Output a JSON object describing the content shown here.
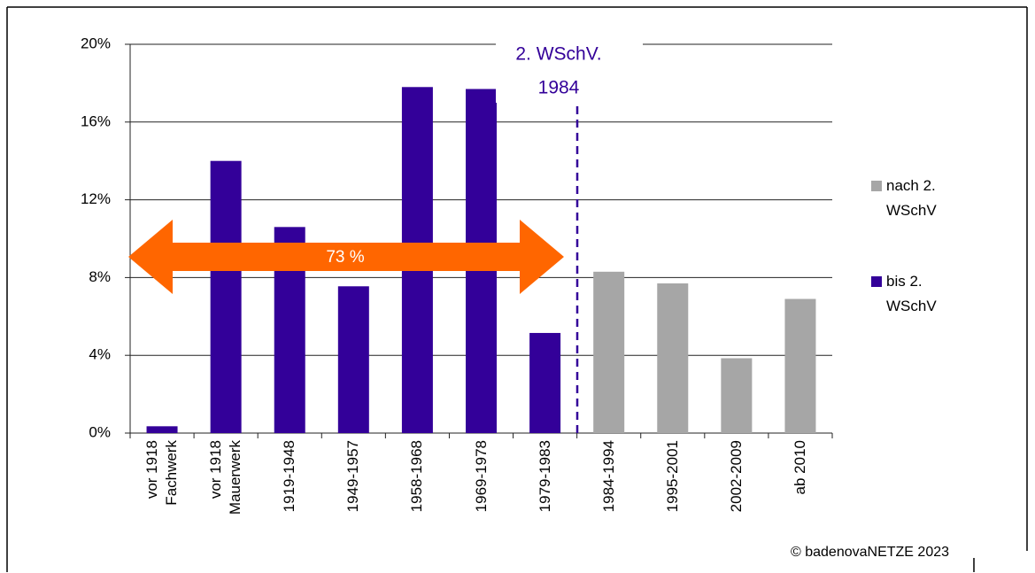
{
  "chart_data": {
    "type": "bar",
    "categories": [
      "vor 1918\nFachwerk",
      "vor 1918\nMauerwerk",
      "1919-1948",
      "1949-1957",
      "1958-1968",
      "1969-1978",
      "1979-1983",
      "1984-1994",
      "1995-2001",
      "2002-2009",
      "ab 2010"
    ],
    "series": [
      {
        "name": "nach 2. WSchV",
        "color": "#a6a6a6",
        "values": [
          null,
          null,
          null,
          null,
          null,
          null,
          null,
          8.3,
          7.7,
          3.85,
          6.9
        ]
      },
      {
        "name": "bis 2. WSchV",
        "color": "#330099",
        "values": [
          0.35,
          14.0,
          10.6,
          7.55,
          17.8,
          17.7,
          5.15,
          null,
          null,
          null,
          null
        ]
      }
    ],
    "ylim": [
      0,
      20
    ],
    "yticks": [
      {
        "value": 0,
        "label": "0%"
      },
      {
        "value": 4,
        "label": "4%"
      },
      {
        "value": 8,
        "label": "8%"
      },
      {
        "value": 12,
        "label": "12%"
      },
      {
        "value": 16,
        "label": "16%"
      },
      {
        "value": 20,
        "label": "20%"
      }
    ],
    "grid": true,
    "legend": "right",
    "annotations": {
      "marker_line": [
        "2. WSchV.",
        "1984"
      ],
      "arrow": "73 %",
      "copyright": "© badenovaNETZE 2023"
    }
  }
}
